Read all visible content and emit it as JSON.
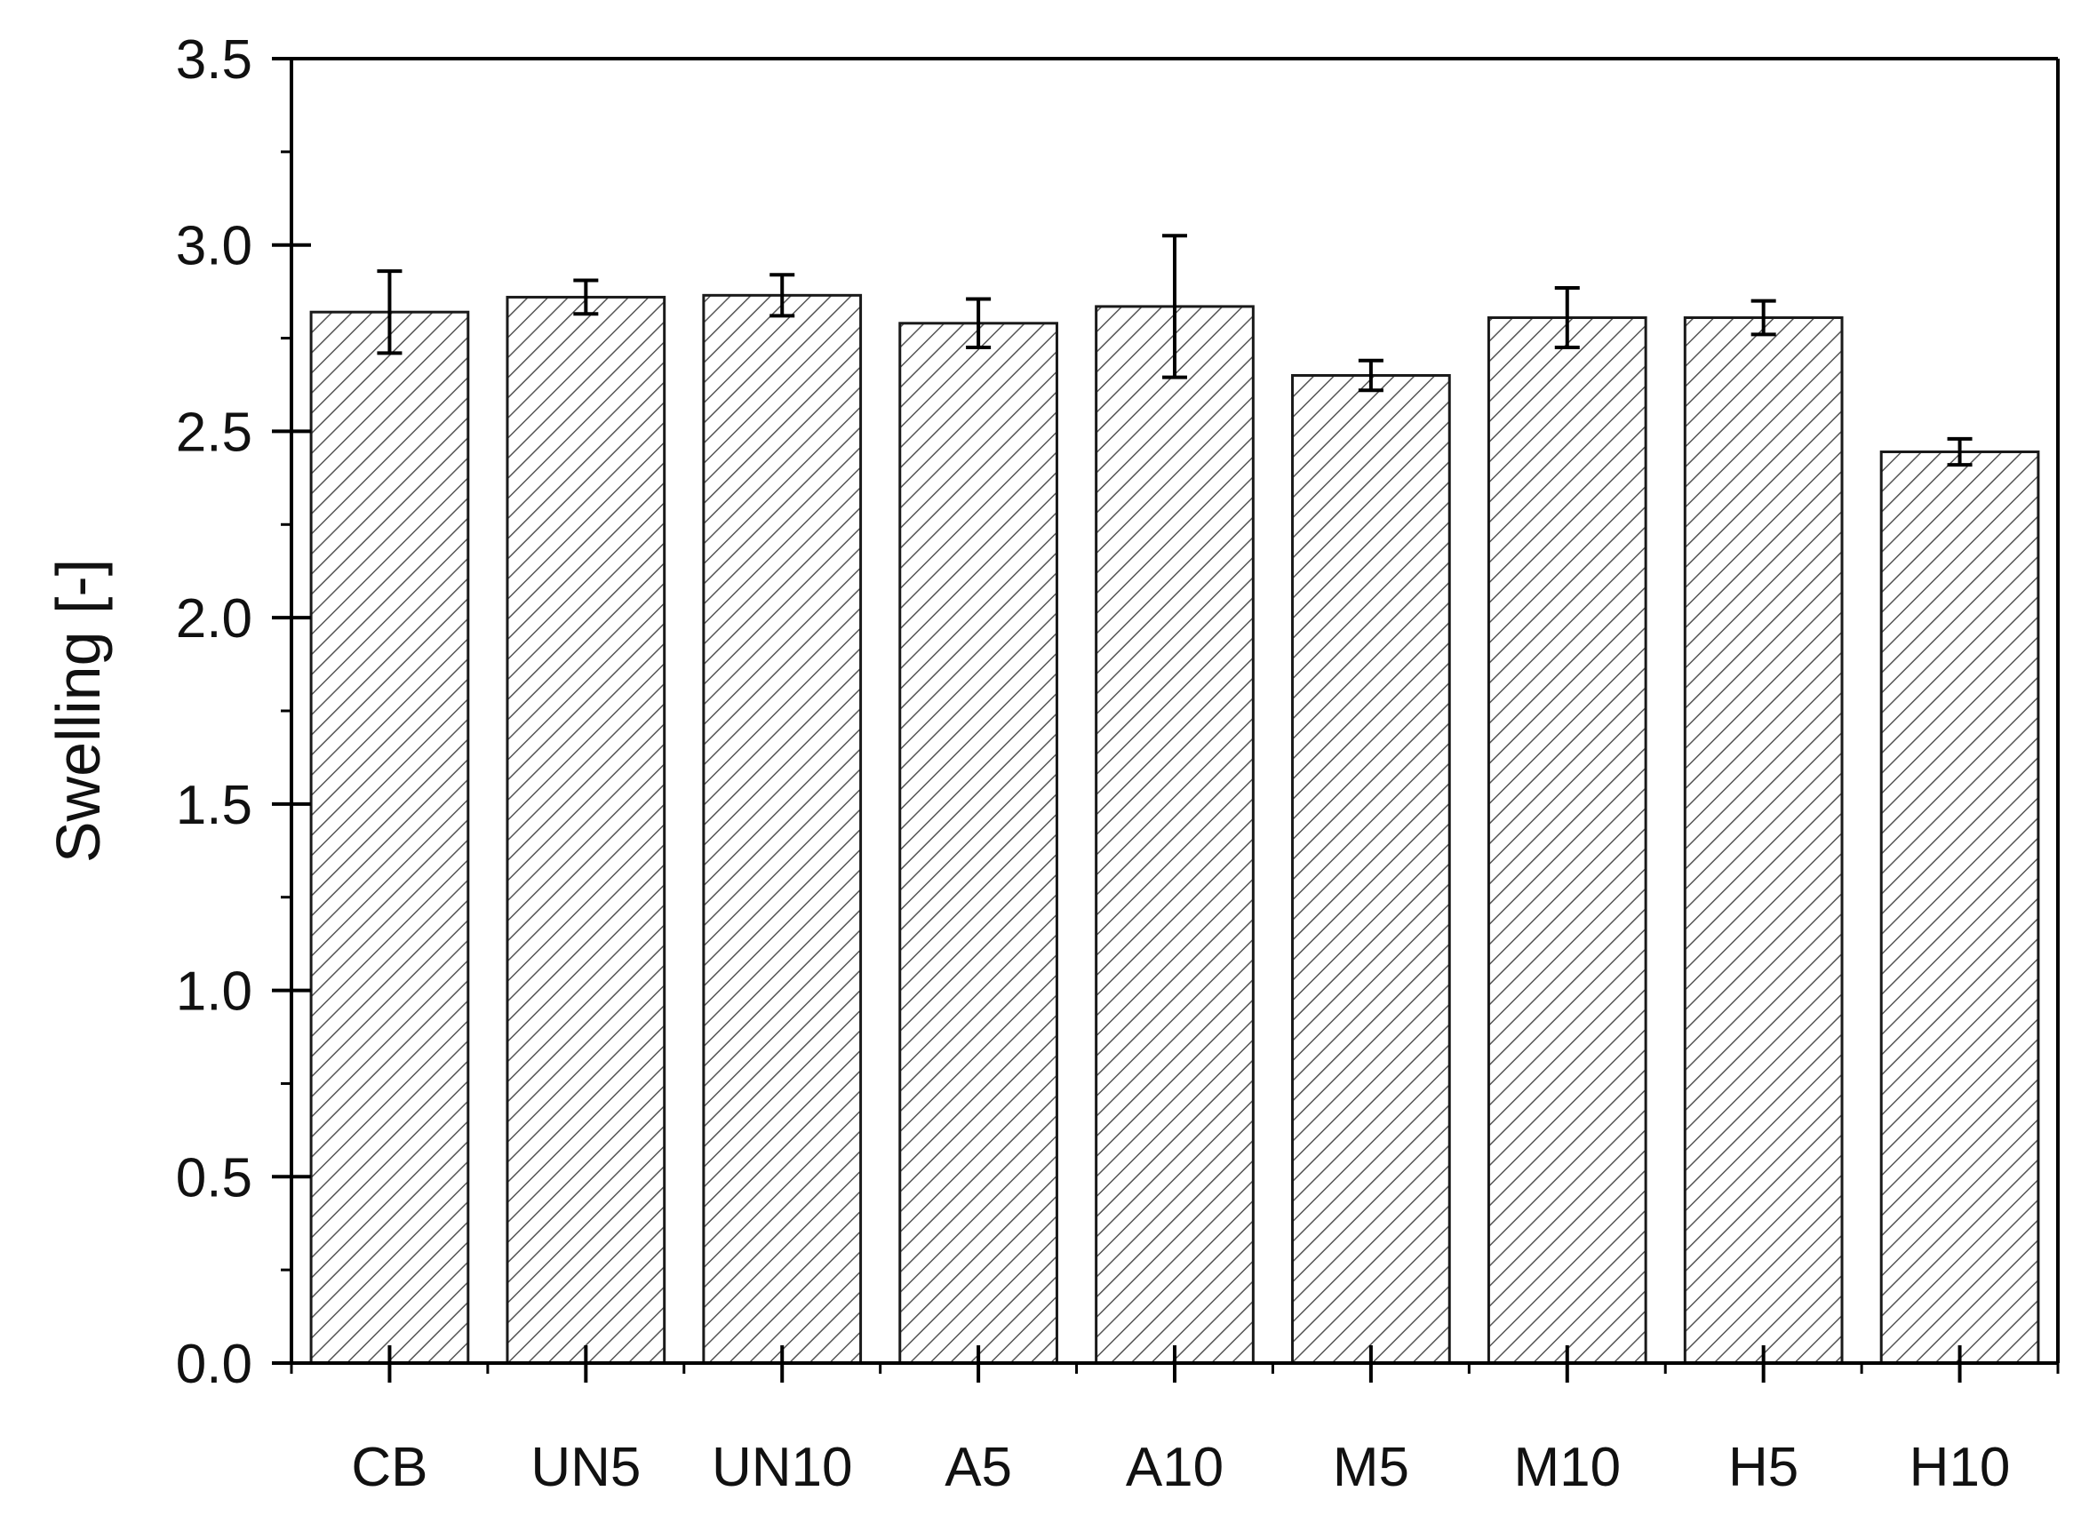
{
  "chart_data": {
    "type": "bar",
    "xlabel": "",
    "ylabel": "Swelling [-]",
    "ylim": [
      0,
      3.5
    ],
    "yticks": [
      "0.0",
      "0.5",
      "1.0",
      "1.5",
      "2.0",
      "2.5",
      "3.0",
      "3.5"
    ],
    "categories": [
      "CB",
      "UN5",
      "UN10",
      "A5",
      "A10",
      "M5",
      "M10",
      "H5",
      "H10"
    ],
    "values": [
      2.82,
      2.86,
      2.865,
      2.79,
      2.835,
      2.65,
      2.805,
      2.805,
      2.445
    ],
    "errors": [
      0.11,
      0.045,
      0.055,
      0.065,
      0.19,
      0.04,
      0.08,
      0.045,
      0.035
    ],
    "bar_fill": "hatched",
    "grid": false,
    "legend": "none"
  },
  "colors": {
    "axis": "#000000",
    "bar_edge": "#1a1a1a",
    "hatch": "#555555",
    "bar_background": "#ffffff",
    "error_bar": "#000000"
  }
}
